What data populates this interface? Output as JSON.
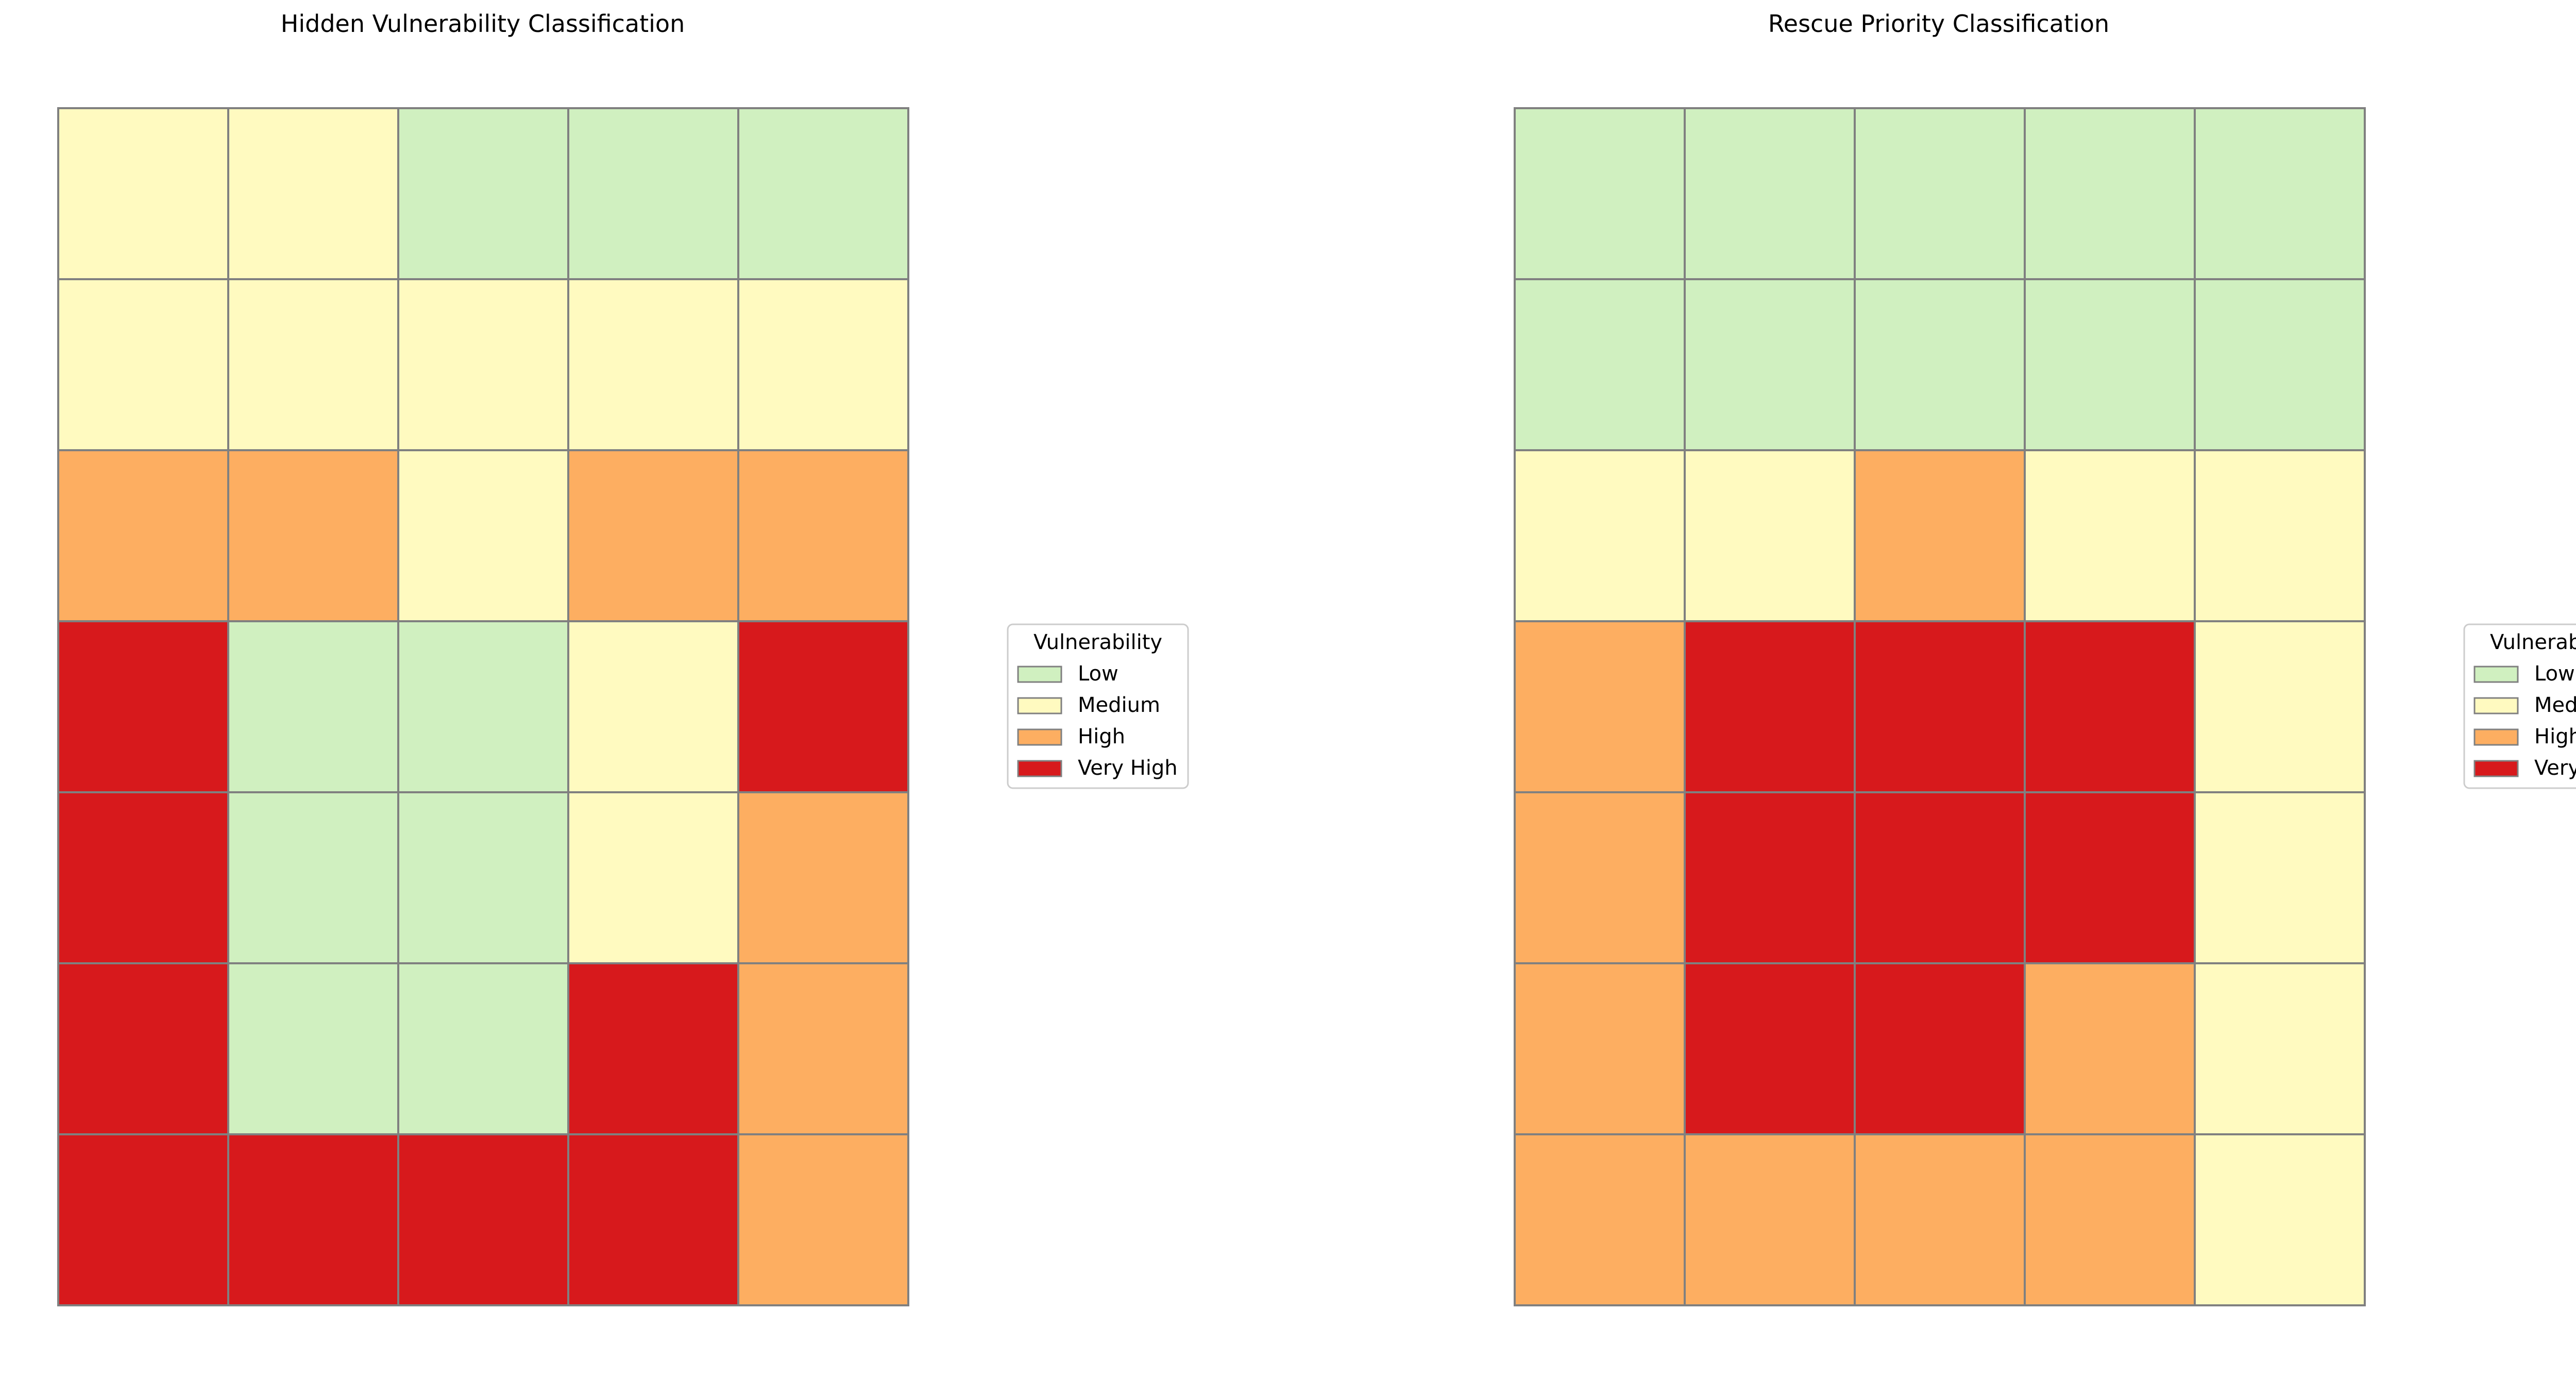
{
  "colors": {
    "Low": "#d0f0c0",
    "Medium": "#fffac0",
    "High": "#fdae61",
    "Very High": "#d7191c",
    "cell_border": "#808080",
    "legend_border": "#cccccc"
  },
  "chart_data": [
    {
      "type": "heatmap",
      "title": "Hidden Vulnerability Classification",
      "rows": 7,
      "cols": 5,
      "categories": [
        "Low",
        "Medium",
        "High",
        "Very High"
      ],
      "grid": [
        [
          "Medium",
          "Medium",
          "Low",
          "Low",
          "Low"
        ],
        [
          "Medium",
          "Medium",
          "Medium",
          "Medium",
          "Medium"
        ],
        [
          "High",
          "High",
          "Medium",
          "High",
          "High"
        ],
        [
          "Very High",
          "Low",
          "Low",
          "Medium",
          "Very High"
        ],
        [
          "Very High",
          "Low",
          "Low",
          "Medium",
          "High"
        ],
        [
          "Very High",
          "Low",
          "Low",
          "Very High",
          "High"
        ],
        [
          "Very High",
          "Very High",
          "Very High",
          "Very High",
          "High"
        ]
      ],
      "legend": {
        "title": "Vulnerability",
        "entries": [
          "Low",
          "Medium",
          "High",
          "Very High"
        ],
        "placement": "right"
      }
    },
    {
      "type": "heatmap",
      "title": "Rescue Priority Classification",
      "rows": 7,
      "cols": 5,
      "categories": [
        "Low",
        "Medium",
        "High",
        "Very High"
      ],
      "grid": [
        [
          "Low",
          "Low",
          "Low",
          "Low",
          "Low"
        ],
        [
          "Low",
          "Low",
          "Low",
          "Low",
          "Low"
        ],
        [
          "Medium",
          "Medium",
          "High",
          "Medium",
          "Medium"
        ],
        [
          "High",
          "Very High",
          "Very High",
          "Very High",
          "Medium"
        ],
        [
          "High",
          "Very High",
          "Very High",
          "Very High",
          "Medium"
        ],
        [
          "High",
          "Very High",
          "Very High",
          "High",
          "Medium"
        ],
        [
          "High",
          "High",
          "High",
          "High",
          "Medium"
        ]
      ],
      "legend": {
        "title": "Vulnerability",
        "entries": [
          "Low",
          "Medium",
          "High",
          "Very High"
        ],
        "placement": "right"
      }
    }
  ]
}
